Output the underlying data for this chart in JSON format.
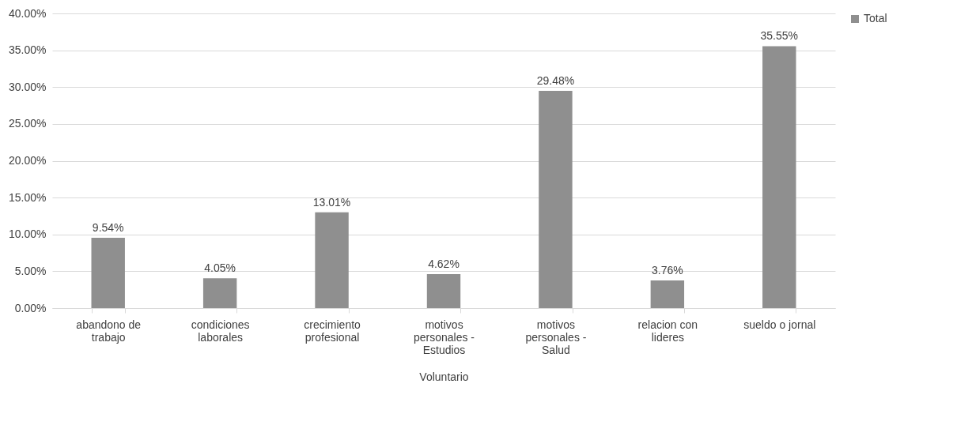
{
  "chart_data": {
    "type": "bar",
    "xlabel": "Voluntario",
    "categories": [
      "abandono de trabajo",
      "condiciones laborales",
      "crecimiento profesional",
      "motivos personales - Estudios",
      "motivos personales - Salud",
      "relacion con lideres",
      "sueldo o jornal"
    ],
    "series": [
      {
        "name": "Total",
        "color": "#8f8f8f",
        "values": [
          9.54,
          4.05,
          13.01,
          4.62,
          29.48,
          3.76,
          35.55
        ],
        "value_labels": [
          "9.54%",
          "4.05%",
          "13.01%",
          "4.62%",
          "29.48%",
          "3.76%",
          "35.55%"
        ]
      }
    ],
    "ylim": [
      0,
      40
    ],
    "yticks": [
      {
        "value": 0,
        "label": "0.00%"
      },
      {
        "value": 5,
        "label": "5.00%"
      },
      {
        "value": 10,
        "label": "10.00%"
      },
      {
        "value": 15,
        "label": "15.00%"
      },
      {
        "value": 20,
        "label": "20.00%"
      },
      {
        "value": 25,
        "label": "25.00%"
      },
      {
        "value": 30,
        "label": "30.00%"
      },
      {
        "value": 35,
        "label": "35.00%"
      },
      {
        "value": 40,
        "label": "40.00%"
      }
    ],
    "grid": "y",
    "legend": "right"
  }
}
